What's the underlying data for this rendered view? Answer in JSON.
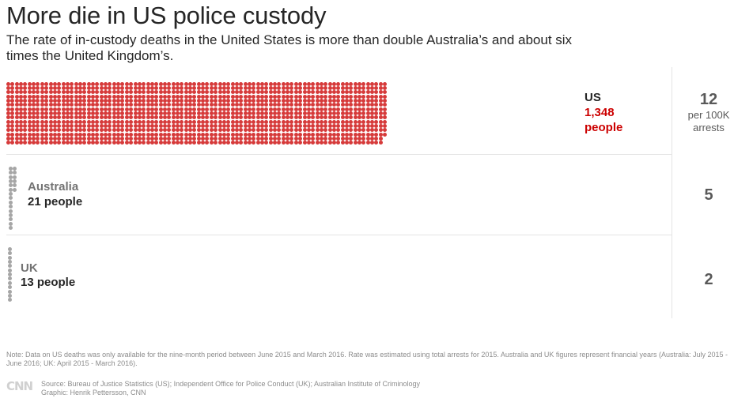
{
  "title": "More die in US police custody",
  "subtitle": "The rate of in-custody deaths in the United States is more than double Australia’s and about six times the United Kingdom’s.",
  "colors": {
    "us": "#d63a3a",
    "other": "#a6a6a6",
    "us_label": "#cc0000"
  },
  "chart_data": {
    "type": "dot-matrix",
    "categories": [
      "US",
      "Australia",
      "UK"
    ],
    "series": [
      {
        "name": "In-custody deaths",
        "values": [
          1348,
          21,
          13
        ]
      },
      {
        "name": "per 100K arrests",
        "values": [
          12,
          5,
          2
        ]
      }
    ]
  },
  "rows": {
    "us": {
      "country": "US",
      "count": "1,348",
      "people": "people",
      "rate": "12",
      "rate_unit_1": "per 100K",
      "rate_unit_2": "arrests"
    },
    "australia": {
      "country": "Australia",
      "people": "21 people",
      "rate": "5"
    },
    "uk": {
      "country": "UK",
      "people": "13 people",
      "rate": "2"
    }
  },
  "note": "Note: Data on US deaths was only available for the nine-month period between June 2015 and March 2016. Rate was estimated using total arrests for 2015. Australia and UK figures represent financial years (Australia: July 2015 - June 2016; UK: April 2015 - March 2016).",
  "logo": "CNN",
  "source": "Source: Bureau of Justice Statistics (US); Independent Office for Police Conduct (UK); Australian Institute of Criminology",
  "credit": "Graphic: Henrik Pettersson, CNN"
}
